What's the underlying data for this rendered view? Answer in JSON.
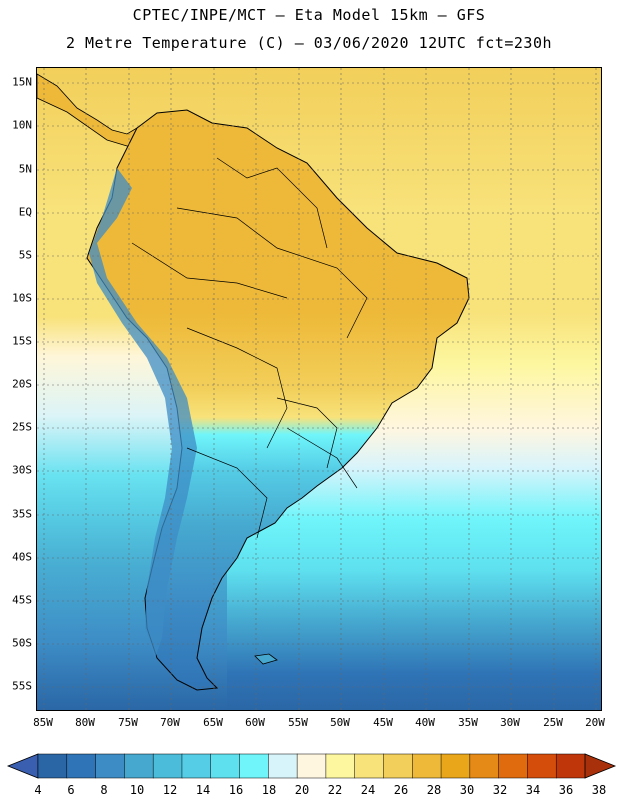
{
  "title": {
    "line1": "CPTEC/INPE/MCT –  Eta Model 15km – GFS",
    "line2": "2 Metre Temperature (C) – 03/06/2020 12UTC fct=230h"
  },
  "axes": {
    "lat_labels": [
      "15N",
      "10N",
      "5N",
      "EQ",
      "5S",
      "10S",
      "15S",
      "20S",
      "25S",
      "30S",
      "35S",
      "40S",
      "45S",
      "50S",
      "55S"
    ],
    "lon_labels": [
      "85W",
      "80W",
      "75W",
      "70W",
      "65W",
      "60W",
      "55W",
      "50W",
      "45W",
      "40W",
      "35W",
      "30W",
      "25W",
      "20W"
    ]
  },
  "colorbar": {
    "labels": [
      "4",
      "6",
      "8",
      "10",
      "12",
      "14",
      "16",
      "18",
      "20",
      "22",
      "24",
      "26",
      "28",
      "30",
      "32",
      "34",
      "36",
      "38"
    ],
    "colors": [
      "#2a66a6",
      "#2f74b6",
      "#3d8cc6",
      "#46a8cf",
      "#4bbcd9",
      "#55cde6",
      "#5ee0ef",
      "#6ff5fa",
      "#d8f4fb",
      "#fff6e0",
      "#fdf7a0",
      "#f8e27a",
      "#f2cf5a",
      "#eeb938",
      "#e9a61a",
      "#e58a16",
      "#e06a0e",
      "#d44d0b",
      "#bf360a"
    ],
    "under_color": "#3a5fb0",
    "over_color": "#a8300a"
  }
}
